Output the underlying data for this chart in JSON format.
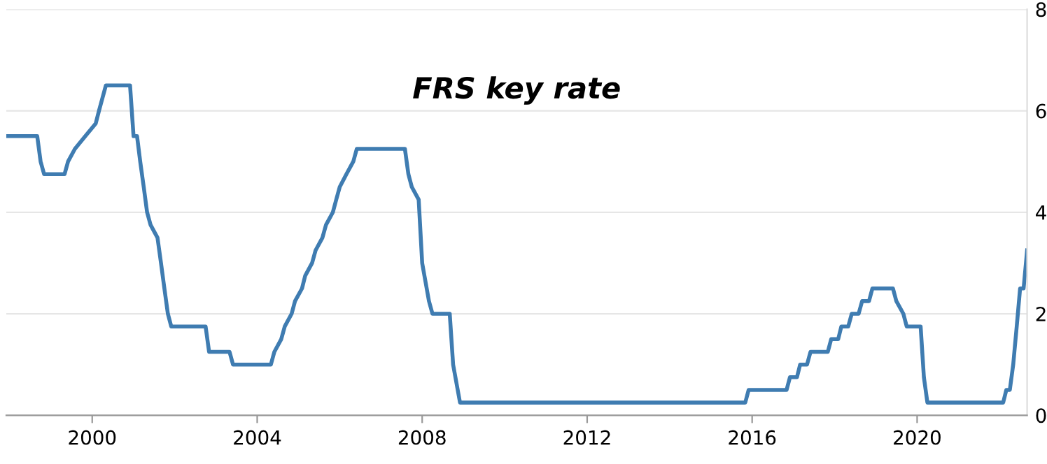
{
  "chart_data": {
    "type": "line",
    "title": "FRS key rate",
    "x": [
      "1997-12",
      "1998-09",
      "1998-10",
      "1998-11",
      "1999-05",
      "1999-06",
      "1999-08",
      "1999-11",
      "2000-02",
      "2000-03",
      "2000-05",
      "2000-12",
      "2001-01",
      "2001-02",
      "2001-03",
      "2001-04",
      "2001-05",
      "2001-06",
      "2001-08",
      "2001-09",
      "2001-10",
      "2001-11",
      "2001-12",
      "2002-10",
      "2002-11",
      "2003-05",
      "2003-06",
      "2004-05",
      "2004-06",
      "2004-08",
      "2004-09",
      "2004-11",
      "2004-12",
      "2005-02",
      "2005-03",
      "2005-05",
      "2005-06",
      "2005-08",
      "2005-09",
      "2005-11",
      "2005-12",
      "2006-01",
      "2006-03",
      "2006-05",
      "2006-06",
      "2007-08",
      "2007-09",
      "2007-10",
      "2007-12",
      "2008-01",
      "2008-03",
      "2008-04",
      "2008-09",
      "2008-10",
      "2008-12",
      "2015-11",
      "2015-12",
      "2016-11",
      "2016-12",
      "2017-02",
      "2017-03",
      "2017-05",
      "2017-06",
      "2017-11",
      "2017-12",
      "2018-02",
      "2018-03",
      "2018-05",
      "2018-06",
      "2018-08",
      "2018-09",
      "2018-11",
      "2018-12",
      "2019-06",
      "2019-07",
      "2019-09",
      "2019-10",
      "2020-02",
      "2020-03",
      "2020-04",
      "2022-02",
      "2022-03",
      "2022-04",
      "2022-05",
      "2022-06",
      "2022-07",
      "2022-08",
      "2022-09"
    ],
    "series": [
      {
        "color": "#3f7cb1",
        "values": [
          5.5,
          5.5,
          5.0,
          4.75,
          4.75,
          5.0,
          5.25,
          5.5,
          5.75,
          6.0,
          6.5,
          6.5,
          5.5,
          5.5,
          5.0,
          4.5,
          4.0,
          3.75,
          3.5,
          3.0,
          2.5,
          2.0,
          1.75,
          1.75,
          1.25,
          1.25,
          1.0,
          1.0,
          1.25,
          1.5,
          1.75,
          2.0,
          2.25,
          2.5,
          2.75,
          3.0,
          3.25,
          3.5,
          3.75,
          4.0,
          4.25,
          4.5,
          4.75,
          5.0,
          5.25,
          5.25,
          4.75,
          4.5,
          4.25,
          3.0,
          2.25,
          2.0,
          2.0,
          1.0,
          0.25,
          0.25,
          0.5,
          0.5,
          0.75,
          0.75,
          1.0,
          1.0,
          1.25,
          1.25,
          1.5,
          1.5,
          1.75,
          1.75,
          2.0,
          2.0,
          2.25,
          2.25,
          2.5,
          2.5,
          2.25,
          2.0,
          1.75,
          1.75,
          0.75,
          0.25,
          0.25,
          0.5,
          0.5,
          1.0,
          1.75,
          2.5,
          2.5,
          3.25
        ]
      }
    ],
    "xlim": [
      "1997-12",
      "2022-09"
    ],
    "xticks": [
      {
        "value": "2000",
        "label": "2000"
      },
      {
        "value": "2004",
        "label": "2004"
      },
      {
        "value": "2008",
        "label": "2008"
      },
      {
        "value": "2012",
        "label": "2012"
      },
      {
        "value": "2016",
        "label": "2016"
      },
      {
        "value": "2020",
        "label": "2020"
      }
    ],
    "ylim": [
      0,
      8
    ],
    "yticks": [
      0,
      2,
      4,
      6,
      8
    ],
    "grid": "y",
    "legend": false
  }
}
